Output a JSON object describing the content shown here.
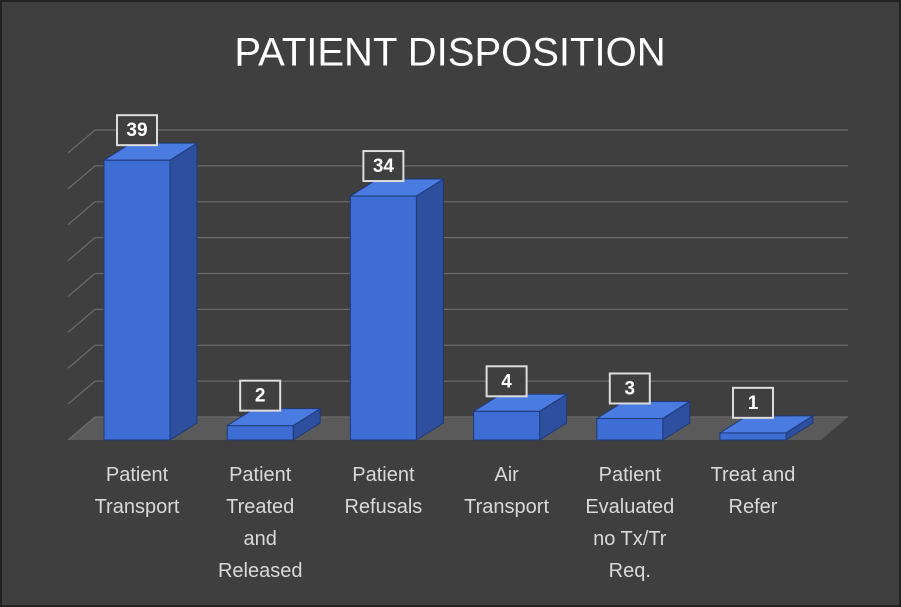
{
  "chart_data": {
    "type": "bar3d",
    "title": "PATIENT DISPOSITION",
    "categories": [
      "Patient Transport",
      "Patient Treated and Released",
      "Patient Refusals",
      "Air Transport",
      "Patient Evaluated no Tx/Tr Req.",
      "Treat and Refer"
    ],
    "values": [
      39,
      2,
      34,
      4,
      3,
      1
    ],
    "color": "#4472c4",
    "ylim": [
      0,
      40
    ],
    "yticks": [
      0,
      5,
      10,
      15,
      20,
      25,
      30,
      35,
      40
    ],
    "grid": true
  }
}
